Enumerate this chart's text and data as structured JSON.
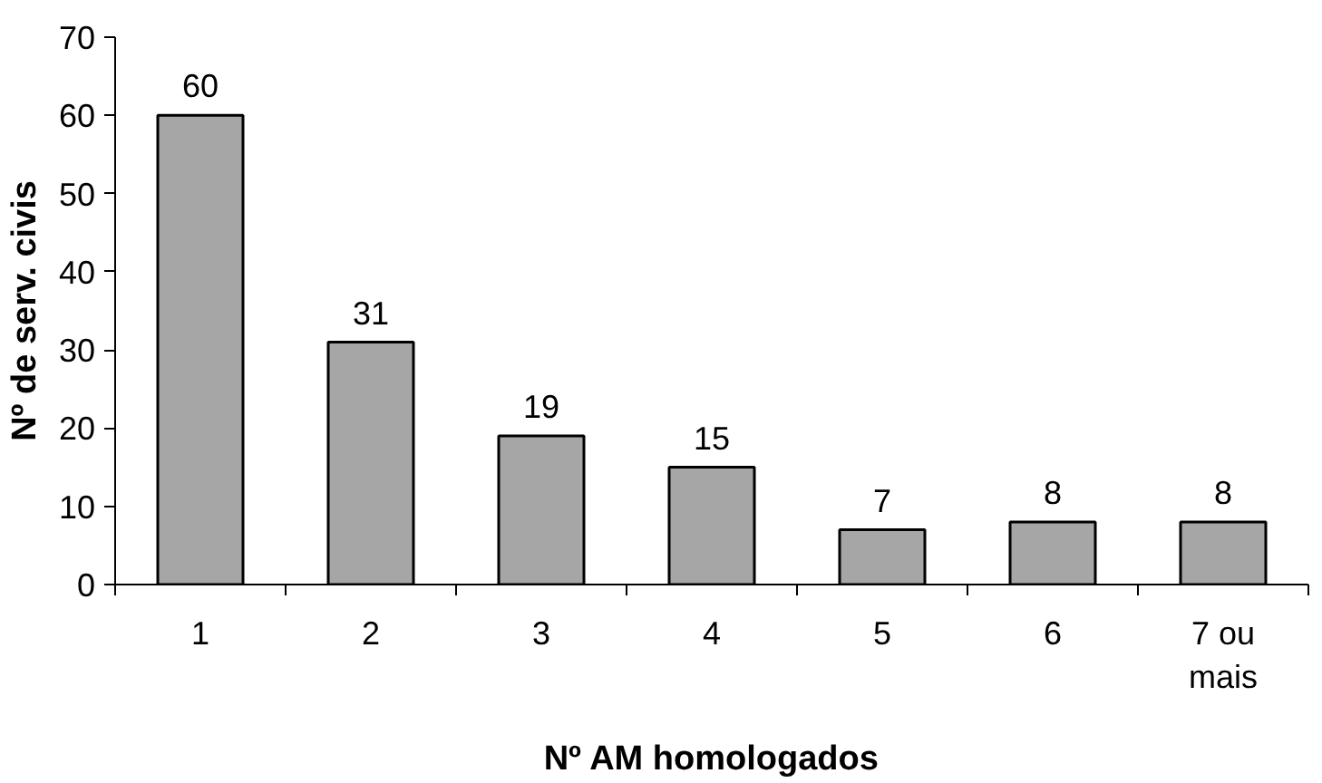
{
  "chart_data": {
    "type": "bar",
    "xlabel": "Nº AM homologados",
    "ylabel": "Nº de serv. civis",
    "categories": [
      "1",
      "2",
      "3",
      "4",
      "5",
      "6",
      "7 ou mais"
    ],
    "values": [
      60,
      31,
      19,
      15,
      7,
      8,
      8
    ],
    "color": "#a6a6a6",
    "ylim": [
      0,
      70
    ],
    "yticks": [
      0,
      10,
      20,
      30,
      40,
      50,
      60,
      70
    ],
    "grid": false,
    "data_labels": true
  }
}
